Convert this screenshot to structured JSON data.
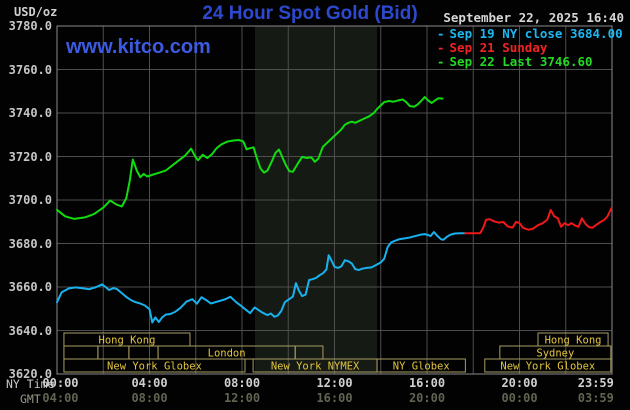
{
  "header": {
    "units_label": "USD/oz",
    "title": "24 Hour Spot Gold (Bid)",
    "datetime": "September 22, 2025 16:40",
    "watermark": "www.kitco.com"
  },
  "legend": [
    {
      "dash": "-",
      "label": "Sep 19 NY close 3684.00",
      "color": "#1cb8f0"
    },
    {
      "dash": "-",
      "label": "Sep 21 Sunday",
      "color": "#f02424"
    },
    {
      "dash": "-",
      "label": "Sep 22 Last 3746.60",
      "color": "#24d824"
    }
  ],
  "axes": {
    "ny_row_label": "NY Time",
    "gmt_row_label": "GMT",
    "y_ticks": [
      {
        "label": "3780.0",
        "value": 3780
      },
      {
        "label": "3760.0",
        "value": 3760
      },
      {
        "label": "3740.0",
        "value": 3740
      },
      {
        "label": "3720.0",
        "value": 3720
      },
      {
        "label": "3700.0",
        "value": 3700
      },
      {
        "label": "3680.0",
        "value": 3680
      },
      {
        "label": "3660.0",
        "value": 3660
      },
      {
        "label": "3640.0",
        "value": 3640
      },
      {
        "label": "3620.0",
        "value": 3620
      }
    ],
    "ny_ticks": [
      {
        "label": "00:00",
        "hour": 0.15
      },
      {
        "label": "04:00",
        "hour": 4
      },
      {
        "label": "08:00",
        "hour": 8
      },
      {
        "label": "12:00",
        "hour": 12
      },
      {
        "label": "16:00",
        "hour": 16
      },
      {
        "label": "20:00",
        "hour": 20
      },
      {
        "label": "23:59",
        "hour": 23.3
      }
    ],
    "gmt_ticks": [
      {
        "label": "04:00",
        "hour": 0.15
      },
      {
        "label": "08:00",
        "hour": 4
      },
      {
        "label": "12:00",
        "hour": 8
      },
      {
        "label": "16:00",
        "hour": 12
      },
      {
        "label": "20:00",
        "hour": 16
      },
      {
        "label": "00:00",
        "hour": 20
      },
      {
        "label": "03:59",
        "hour": 23.3
      }
    ]
  },
  "colors": {
    "background": "#020203",
    "grid": "#4e4e4e",
    "plot_border": "#8a8a8a",
    "nymex_band": "#151a14",
    "session_border": "#a89d5f",
    "session_text": "#e3c53e",
    "title_blue": "#2d49cf",
    "watermark_blue": "#3d5be0"
  },
  "chart_data": {
    "type": "line",
    "title": "24 Hour Spot Gold (Bid)",
    "xlabel": "NY Time (hours 00:00-23:59)",
    "ylabel": "USD/oz",
    "ylim": [
      3620,
      3780
    ],
    "xlim_hours": [
      0,
      24
    ],
    "grid": "on",
    "legend_position": "top-right",
    "nymex_band_hours": [
      8.56,
      13.84
    ],
    "series": [
      {
        "name": "Sep 22 Last 3746.60",
        "color": "#10dc10",
        "points": [
          [
            0.0,
            3695.5
          ],
          [
            0.35,
            3692.5
          ],
          [
            0.75,
            3691.3
          ],
          [
            1.2,
            3692.0
          ],
          [
            1.6,
            3693.5
          ],
          [
            2.0,
            3696.5
          ],
          [
            2.3,
            3699.8
          ],
          [
            2.55,
            3698.0
          ],
          [
            2.8,
            3697.0
          ],
          [
            3.0,
            3701.0
          ],
          [
            3.15,
            3709.0
          ],
          [
            3.28,
            3718.6
          ],
          [
            3.45,
            3713.5
          ],
          [
            3.6,
            3710.5
          ],
          [
            3.75,
            3712.0
          ],
          [
            3.9,
            3710.8
          ],
          [
            4.1,
            3711.5
          ],
          [
            4.4,
            3712.5
          ],
          [
            4.7,
            3713.5
          ],
          [
            5.0,
            3716.0
          ],
          [
            5.3,
            3718.5
          ],
          [
            5.55,
            3720.5
          ],
          [
            5.8,
            3723.6
          ],
          [
            6.0,
            3719.5
          ],
          [
            6.1,
            3718.3
          ],
          [
            6.3,
            3720.8
          ],
          [
            6.5,
            3719.3
          ],
          [
            6.7,
            3721.0
          ],
          [
            6.9,
            3723.8
          ],
          [
            7.1,
            3725.5
          ],
          [
            7.35,
            3726.8
          ],
          [
            7.6,
            3727.3
          ],
          [
            7.85,
            3727.6
          ],
          [
            8.05,
            3727.0
          ],
          [
            8.2,
            3723.3
          ],
          [
            8.35,
            3723.8
          ],
          [
            8.5,
            3724.2
          ],
          [
            8.65,
            3719.0
          ],
          [
            8.8,
            3714.5
          ],
          [
            8.95,
            3712.6
          ],
          [
            9.1,
            3713.5
          ],
          [
            9.3,
            3718.0
          ],
          [
            9.45,
            3721.7
          ],
          [
            9.6,
            3723.2
          ],
          [
            9.75,
            3719.5
          ],
          [
            9.9,
            3716.0
          ],
          [
            10.05,
            3713.2
          ],
          [
            10.2,
            3713.0
          ],
          [
            10.4,
            3716.5
          ],
          [
            10.6,
            3719.8
          ],
          [
            10.8,
            3719.3
          ],
          [
            11.0,
            3719.6
          ],
          [
            11.15,
            3717.6
          ],
          [
            11.3,
            3719.0
          ],
          [
            11.5,
            3724.5
          ],
          [
            11.7,
            3726.5
          ],
          [
            11.85,
            3728.0
          ],
          [
            12.0,
            3729.5
          ],
          [
            12.15,
            3731.0
          ],
          [
            12.3,
            3732.5
          ],
          [
            12.45,
            3734.6
          ],
          [
            12.6,
            3735.5
          ],
          [
            12.75,
            3736.0
          ],
          [
            12.9,
            3735.5
          ],
          [
            13.1,
            3736.5
          ],
          [
            13.3,
            3737.5
          ],
          [
            13.5,
            3738.5
          ],
          [
            13.7,
            3740.0
          ],
          [
            13.85,
            3742.0
          ],
          [
            14.0,
            3743.5
          ],
          [
            14.15,
            3745.0
          ],
          [
            14.35,
            3745.5
          ],
          [
            14.55,
            3745.2
          ],
          [
            14.75,
            3745.8
          ],
          [
            14.95,
            3746.2
          ],
          [
            15.1,
            3745.0
          ],
          [
            15.25,
            3743.2
          ],
          [
            15.45,
            3742.9
          ],
          [
            15.6,
            3744.0
          ],
          [
            15.75,
            3745.5
          ],
          [
            15.9,
            3747.3
          ],
          [
            16.05,
            3745.8
          ],
          [
            16.2,
            3744.6
          ],
          [
            16.35,
            3745.8
          ],
          [
            16.5,
            3746.8
          ],
          [
            16.67,
            3746.6
          ]
        ]
      },
      {
        "name": "Sep 19 NY close 3684.00",
        "color": "#18b2ee",
        "points": [
          [
            0.0,
            3653.0
          ],
          [
            0.2,
            3657.5
          ],
          [
            0.5,
            3659.3
          ],
          [
            0.8,
            3659.8
          ],
          [
            1.1,
            3659.4
          ],
          [
            1.4,
            3659.0
          ],
          [
            1.7,
            3660.0
          ],
          [
            1.95,
            3661.2
          ],
          [
            2.1,
            3660.0
          ],
          [
            2.25,
            3658.6
          ],
          [
            2.45,
            3659.5
          ],
          [
            2.6,
            3659.0
          ],
          [
            2.8,
            3657.2
          ],
          [
            3.0,
            3655.4
          ],
          [
            3.2,
            3654.0
          ],
          [
            3.4,
            3653.0
          ],
          [
            3.6,
            3652.4
          ],
          [
            3.8,
            3651.5
          ],
          [
            4.0,
            3649.8
          ],
          [
            4.12,
            3643.7
          ],
          [
            4.25,
            3646.0
          ],
          [
            4.4,
            3643.9
          ],
          [
            4.55,
            3646.0
          ],
          [
            4.7,
            3647.3
          ],
          [
            4.9,
            3647.6
          ],
          [
            5.1,
            3648.5
          ],
          [
            5.35,
            3650.5
          ],
          [
            5.6,
            3653.3
          ],
          [
            5.85,
            3654.4
          ],
          [
            6.05,
            3652.3
          ],
          [
            6.25,
            3655.3
          ],
          [
            6.45,
            3654.0
          ],
          [
            6.65,
            3652.4
          ],
          [
            6.85,
            3653.0
          ],
          [
            7.1,
            3653.8
          ],
          [
            7.3,
            3654.5
          ],
          [
            7.5,
            3655.5
          ],
          [
            7.75,
            3653.0
          ],
          [
            8.0,
            3651.0
          ],
          [
            8.2,
            3649.3
          ],
          [
            8.35,
            3648.0
          ],
          [
            8.55,
            3650.6
          ],
          [
            8.7,
            3649.5
          ],
          [
            8.85,
            3648.4
          ],
          [
            9.1,
            3647.1
          ],
          [
            9.25,
            3647.8
          ],
          [
            9.4,
            3646.3
          ],
          [
            9.55,
            3646.9
          ],
          [
            9.7,
            3649.0
          ],
          [
            9.85,
            3653.0
          ],
          [
            10.05,
            3654.5
          ],
          [
            10.2,
            3655.6
          ],
          [
            10.33,
            3661.8
          ],
          [
            10.45,
            3658.5
          ],
          [
            10.6,
            3655.8
          ],
          [
            10.75,
            3656.5
          ],
          [
            10.9,
            3663.2
          ],
          [
            11.05,
            3663.6
          ],
          [
            11.2,
            3664.2
          ],
          [
            11.35,
            3665.4
          ],
          [
            11.5,
            3666.3
          ],
          [
            11.65,
            3668.0
          ],
          [
            11.75,
            3674.6
          ],
          [
            11.9,
            3671.5
          ],
          [
            12.0,
            3669.3
          ],
          [
            12.15,
            3668.8
          ],
          [
            12.3,
            3669.5
          ],
          [
            12.45,
            3672.3
          ],
          [
            12.6,
            3671.8
          ],
          [
            12.75,
            3670.8
          ],
          [
            12.9,
            3668.2
          ],
          [
            13.05,
            3667.8
          ],
          [
            13.2,
            3668.4
          ],
          [
            13.4,
            3668.8
          ],
          [
            13.6,
            3669.0
          ],
          [
            13.8,
            3670.1
          ],
          [
            14.0,
            3671.3
          ],
          [
            14.15,
            3673.0
          ],
          [
            14.3,
            3678.4
          ],
          [
            14.45,
            3680.5
          ],
          [
            14.6,
            3681.2
          ],
          [
            14.8,
            3682.0
          ],
          [
            15.0,
            3682.3
          ],
          [
            15.2,
            3682.6
          ],
          [
            15.45,
            3683.3
          ],
          [
            15.7,
            3684.0
          ],
          [
            15.9,
            3684.3
          ],
          [
            16.05,
            3683.9
          ],
          [
            16.15,
            3683.4
          ],
          [
            16.3,
            3685.3
          ],
          [
            16.45,
            3683.5
          ],
          [
            16.6,
            3682.0
          ],
          [
            16.7,
            3681.7
          ],
          [
            16.85,
            3683.0
          ],
          [
            17.0,
            3684.0
          ],
          [
            17.2,
            3684.6
          ],
          [
            17.45,
            3684.7
          ],
          [
            17.65,
            3684.7
          ]
        ]
      },
      {
        "name": "Sep 21 Sunday",
        "color": "#f01818",
        "points": [
          [
            17.65,
            3684.7
          ],
          [
            18.0,
            3684.7
          ],
          [
            18.3,
            3684.8
          ],
          [
            18.42,
            3687.0
          ],
          [
            18.55,
            3690.8
          ],
          [
            18.7,
            3691.2
          ],
          [
            18.9,
            3690.2
          ],
          [
            19.1,
            3689.6
          ],
          [
            19.3,
            3689.9
          ],
          [
            19.5,
            3687.8
          ],
          [
            19.7,
            3687.3
          ],
          [
            19.85,
            3689.9
          ],
          [
            20.0,
            3689.4
          ],
          [
            20.15,
            3687.2
          ],
          [
            20.4,
            3686.3
          ],
          [
            20.6,
            3686.9
          ],
          [
            20.8,
            3688.4
          ],
          [
            21.0,
            3689.3
          ],
          [
            21.2,
            3691.0
          ],
          [
            21.35,
            3695.4
          ],
          [
            21.5,
            3692.5
          ],
          [
            21.65,
            3691.7
          ],
          [
            21.8,
            3687.7
          ],
          [
            21.95,
            3689.4
          ],
          [
            22.1,
            3688.4
          ],
          [
            22.25,
            3689.4
          ],
          [
            22.4,
            3688.3
          ],
          [
            22.55,
            3687.7
          ],
          [
            22.7,
            3691.6
          ],
          [
            22.85,
            3689.0
          ],
          [
            23.0,
            3687.6
          ],
          [
            23.15,
            3687.2
          ],
          [
            23.3,
            3688.4
          ],
          [
            23.5,
            3689.9
          ],
          [
            23.65,
            3690.7
          ],
          [
            23.8,
            3692.4
          ],
          [
            23.98,
            3696.3
          ]
        ]
      }
    ],
    "sessions": [
      {
        "row": 0,
        "from": 0.3,
        "to": 5.75,
        "label": "Hong Kong"
      },
      {
        "row": 0,
        "from": 20.8,
        "to": 23.83,
        "label": "Hong Kong"
      },
      {
        "row": 1,
        "from": 0.3,
        "to": 1.77,
        "label": ""
      },
      {
        "row": 1,
        "from": 1.77,
        "to": 3.11,
        "label": ""
      },
      {
        "row": 1,
        "from": 3.11,
        "to": 4.37,
        "label": ""
      },
      {
        "row": 1,
        "from": 4.37,
        "to": 10.3,
        "label": "London"
      },
      {
        "row": 1,
        "from": 10.3,
        "to": 11.5,
        "label": ""
      },
      {
        "row": 1,
        "from": 19.15,
        "to": 23.95,
        "label": "Sydney"
      },
      {
        "row": 2,
        "from": 0.3,
        "to": 8.13,
        "label": "New York Globex"
      },
      {
        "row": 2,
        "from": 8.48,
        "to": 13.84,
        "label": "New York NYMEX"
      },
      {
        "row": 2,
        "from": 13.84,
        "to": 17.66,
        "label": "NY Globex"
      },
      {
        "row": 2,
        "from": 18.5,
        "to": 23.95,
        "label": "New York Globex"
      }
    ]
  }
}
